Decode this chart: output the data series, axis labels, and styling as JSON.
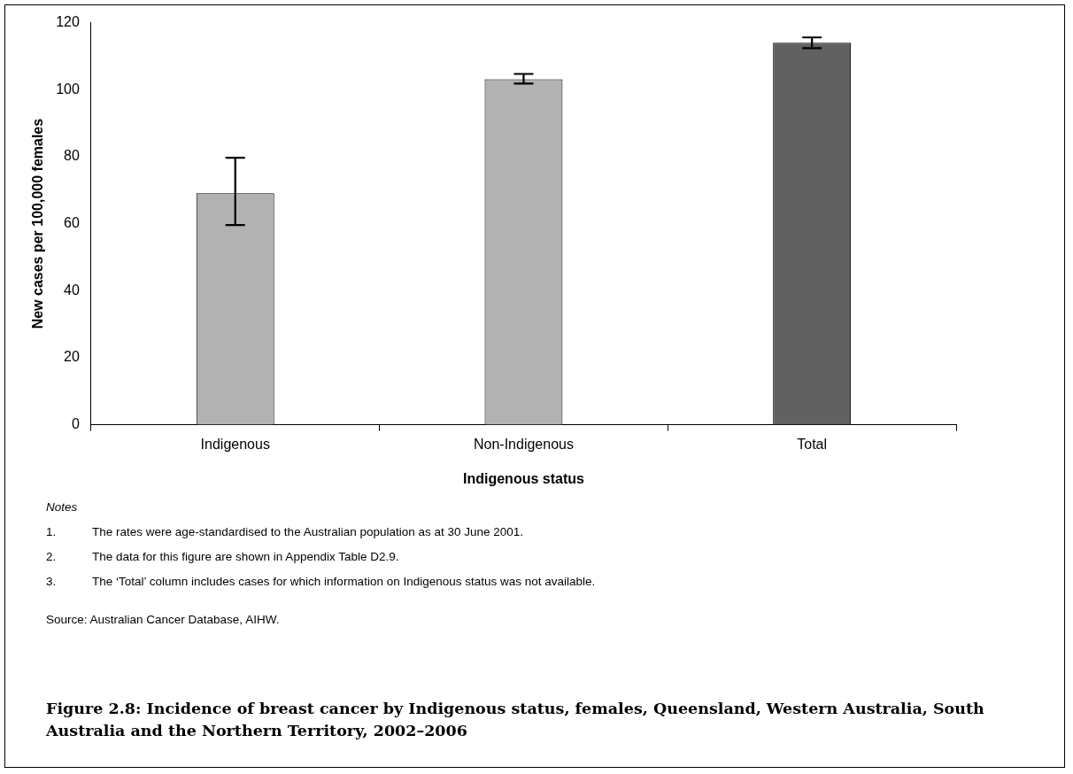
{
  "chart_data": {
    "type": "bar",
    "title": "Figure 2.8: Incidence of breast cancer by Indigenous status, females, Queensland, Western Australia, South Australia and the Northern Territory, 2002–2006",
    "xlabel": "Indigenous status",
    "ylabel": "New cases per 100,000 females",
    "categories": [
      "Indigenous",
      "Non-Indigenous",
      "Total"
    ],
    "values": [
      69.1,
      103.1,
      114.0
    ],
    "colors": [
      "#b2b2b2",
      "#b2b2b2",
      "#616161"
    ],
    "errors": [
      [
        59.6,
        79.7
      ],
      [
        101.8,
        104.7
      ],
      [
        112.4,
        115.6
      ]
    ],
    "ylim": [
      0,
      120
    ],
    "yticks": [
      0,
      20,
      40,
      60,
      80,
      100,
      120
    ],
    "annotations": [
      "Notes",
      "1. The rates were age-standardised to the Australian population as at 30 June 2001.",
      "2. The data for this figure are shown in Appendix Table D2.9.",
      "3. The ‘Total’ column includes cases for which information on Indigenous status was not available.",
      "Source: Australian Cancer Database, AIHW."
    ]
  }
}
